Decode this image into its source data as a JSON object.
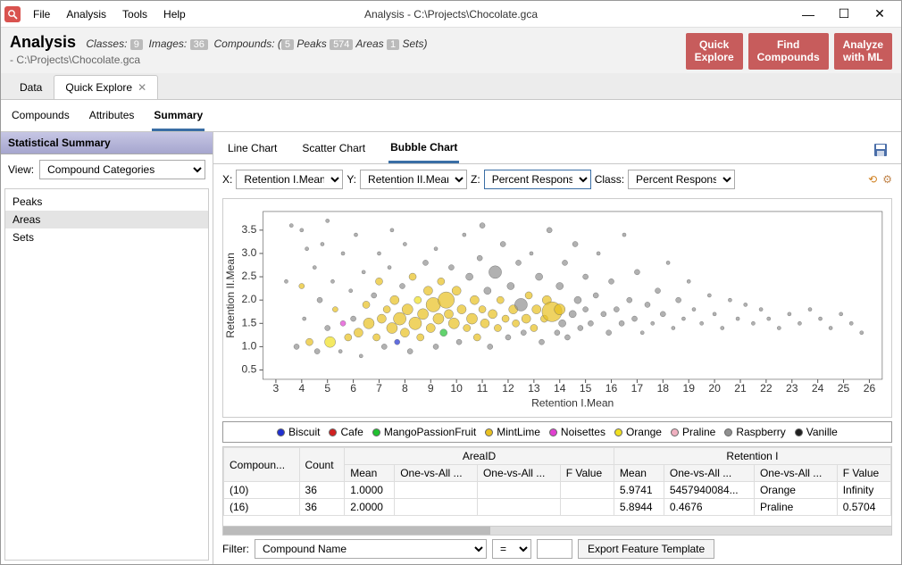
{
  "window": {
    "title": "Analysis - C:\\Projects\\Chocolate.gca"
  },
  "menu": [
    "File",
    "Analysis",
    "Tools",
    "Help"
  ],
  "header": {
    "title": "Analysis",
    "classes_label": "Classes:",
    "classes": "9",
    "images_label": "Images:",
    "images": "36",
    "compounds_label": "Compounds:",
    "peaks": "5",
    "peaks_label": "Peaks",
    "areas": "574",
    "areas_label": "Areas",
    "sets": "1",
    "sets_label": "Sets",
    "path": "- C:\\Projects\\Chocolate.gca",
    "buttons": {
      "quick_explore": "Quick\nExplore",
      "find_compounds": "Find\nCompounds",
      "analyze_ml": "Analyze\nwith ML"
    }
  },
  "main_tabs": [
    {
      "label": "Data",
      "active": false,
      "closable": false
    },
    {
      "label": "Quick Explore",
      "active": true,
      "closable": true
    }
  ],
  "sub_tabs": [
    {
      "label": "Compounds",
      "active": false
    },
    {
      "label": "Attributes",
      "active": false
    },
    {
      "label": "Summary",
      "active": true
    }
  ],
  "left": {
    "header": "Statistical Summary",
    "view_label": "View:",
    "view_value": "Compound Categories",
    "items": [
      {
        "label": "Peaks",
        "sel": false
      },
      {
        "label": "Areas",
        "sel": true
      },
      {
        "label": "Sets",
        "sel": false
      }
    ]
  },
  "chart_tabs": [
    {
      "label": "Line Chart",
      "active": false
    },
    {
      "label": "Scatter Chart",
      "active": false
    },
    {
      "label": "Bubble Chart",
      "active": true
    }
  ],
  "axes": {
    "x_label": "X:",
    "x": "Retention I.Mean",
    "y_label": "Y:",
    "y": "Retention II.Mean",
    "z_label": "Z:",
    "z": "Percent Respons...",
    "class_label": "Class:",
    "class": "Percent Respons..."
  },
  "chart": {
    "xlabel": "Retention I.Mean",
    "ylabel": "Retention II.Mean",
    "xlim": [
      2.5,
      26.5
    ],
    "ylim": [
      0.3,
      3.9
    ],
    "xticks": [
      3,
      4,
      5,
      6,
      7,
      8,
      9,
      10,
      11,
      12,
      13,
      14,
      15,
      16,
      17,
      18,
      19,
      20,
      21,
      22,
      23,
      24,
      25,
      26
    ],
    "yticks": [
      0.5,
      1.0,
      1.5,
      2.0,
      2.5,
      3.0,
      3.5
    ],
    "background": "#ffffff",
    "axis_color": "#555555",
    "tick_color": "#555555",
    "label_fontsize": 11,
    "tick_fontsize": 10,
    "categories": {
      "Biscuit": {
        "color": "#2030d0"
      },
      "Cafe": {
        "color": "#d02020"
      },
      "MangoPassionFruit": {
        "color": "#20c030"
      },
      "MintLime": {
        "color": "#e8c020"
      },
      "Noisettes": {
        "color": "#e040d0"
      },
      "Orange": {
        "color": "#f0e020"
      },
      "Praline": {
        "color": "#f0b0c0"
      },
      "Raspberry": {
        "color": "#909090"
      },
      "Vanille": {
        "color": "#202020"
      }
    },
    "points": [
      {
        "x": 3.4,
        "y": 2.4,
        "r": 2,
        "c": "Raspberry"
      },
      {
        "x": 3.6,
        "y": 3.6,
        "r": 2,
        "c": "Raspberry"
      },
      {
        "x": 3.8,
        "y": 1.0,
        "r": 3,
        "c": "Raspberry"
      },
      {
        "x": 4.0,
        "y": 3.5,
        "r": 2,
        "c": "Raspberry"
      },
      {
        "x": 4.0,
        "y": 2.3,
        "r": 3,
        "c": "MintLime"
      },
      {
        "x": 4.1,
        "y": 1.6,
        "r": 2,
        "c": "Raspberry"
      },
      {
        "x": 4.2,
        "y": 3.1,
        "r": 2,
        "c": "Raspberry"
      },
      {
        "x": 4.3,
        "y": 1.1,
        "r": 4,
        "c": "MintLime"
      },
      {
        "x": 4.5,
        "y": 2.7,
        "r": 2,
        "c": "Raspberry"
      },
      {
        "x": 4.6,
        "y": 0.9,
        "r": 3,
        "c": "Raspberry"
      },
      {
        "x": 4.7,
        "y": 2.0,
        "r": 3,
        "c": "Raspberry"
      },
      {
        "x": 4.8,
        "y": 3.2,
        "r": 2,
        "c": "Raspberry"
      },
      {
        "x": 5.0,
        "y": 3.7,
        "r": 2,
        "c": "Raspberry"
      },
      {
        "x": 5.0,
        "y": 1.4,
        "r": 3,
        "c": "Raspberry"
      },
      {
        "x": 5.1,
        "y": 1.1,
        "r": 6,
        "c": "Orange"
      },
      {
        "x": 5.2,
        "y": 2.4,
        "r": 2,
        "c": "Raspberry"
      },
      {
        "x": 5.3,
        "y": 1.8,
        "r": 3,
        "c": "MintLime"
      },
      {
        "x": 5.5,
        "y": 0.9,
        "r": 2,
        "c": "Raspberry"
      },
      {
        "x": 5.6,
        "y": 1.5,
        "r": 3,
        "c": "Noisettes"
      },
      {
        "x": 5.6,
        "y": 3.0,
        "r": 2,
        "c": "Raspberry"
      },
      {
        "x": 5.8,
        "y": 1.2,
        "r": 4,
        "c": "MintLime"
      },
      {
        "x": 5.9,
        "y": 2.2,
        "r": 2,
        "c": "Raspberry"
      },
      {
        "x": 6.0,
        "y": 1.6,
        "r": 3,
        "c": "Raspberry"
      },
      {
        "x": 6.1,
        "y": 3.4,
        "r": 2,
        "c": "Raspberry"
      },
      {
        "x": 6.2,
        "y": 1.3,
        "r": 5,
        "c": "MintLime"
      },
      {
        "x": 6.3,
        "y": 0.8,
        "r": 2,
        "c": "Raspberry"
      },
      {
        "x": 6.4,
        "y": 2.6,
        "r": 2,
        "c": "Raspberry"
      },
      {
        "x": 6.5,
        "y": 1.9,
        "r": 4,
        "c": "MintLime"
      },
      {
        "x": 6.6,
        "y": 1.5,
        "r": 6,
        "c": "MintLime"
      },
      {
        "x": 6.8,
        "y": 2.1,
        "r": 3,
        "c": "Raspberry"
      },
      {
        "x": 6.9,
        "y": 1.2,
        "r": 4,
        "c": "MintLime"
      },
      {
        "x": 7.0,
        "y": 3.0,
        "r": 2,
        "c": "Raspberry"
      },
      {
        "x": 7.0,
        "y": 2.4,
        "r": 4,
        "c": "MintLime"
      },
      {
        "x": 7.1,
        "y": 1.6,
        "r": 5,
        "c": "MintLime"
      },
      {
        "x": 7.2,
        "y": 1.0,
        "r": 3,
        "c": "Raspberry"
      },
      {
        "x": 7.3,
        "y": 1.8,
        "r": 4,
        "c": "MintLime"
      },
      {
        "x": 7.4,
        "y": 2.7,
        "r": 2,
        "c": "Raspberry"
      },
      {
        "x": 7.5,
        "y": 1.4,
        "r": 6,
        "c": "MintLime"
      },
      {
        "x": 7.5,
        "y": 3.5,
        "r": 2,
        "c": "Raspberry"
      },
      {
        "x": 7.6,
        "y": 2.0,
        "r": 5,
        "c": "MintLime"
      },
      {
        "x": 7.7,
        "y": 1.1,
        "r": 3,
        "c": "Biscuit"
      },
      {
        "x": 7.8,
        "y": 1.6,
        "r": 7,
        "c": "MintLime"
      },
      {
        "x": 7.9,
        "y": 2.3,
        "r": 3,
        "c": "Raspberry"
      },
      {
        "x": 8.0,
        "y": 1.3,
        "r": 5,
        "c": "MintLime"
      },
      {
        "x": 8.0,
        "y": 3.2,
        "r": 2,
        "c": "Raspberry"
      },
      {
        "x": 8.1,
        "y": 1.8,
        "r": 6,
        "c": "MintLime"
      },
      {
        "x": 8.2,
        "y": 0.9,
        "r": 3,
        "c": "Raspberry"
      },
      {
        "x": 8.3,
        "y": 2.5,
        "r": 4,
        "c": "MintLime"
      },
      {
        "x": 8.4,
        "y": 1.5,
        "r": 7,
        "c": "MintLime"
      },
      {
        "x": 8.5,
        "y": 2.0,
        "r": 4,
        "c": "Orange"
      },
      {
        "x": 8.6,
        "y": 1.2,
        "r": 4,
        "c": "MintLime"
      },
      {
        "x": 8.7,
        "y": 1.7,
        "r": 6,
        "c": "MintLime"
      },
      {
        "x": 8.8,
        "y": 2.8,
        "r": 3,
        "c": "Raspberry"
      },
      {
        "x": 8.9,
        "y": 2.2,
        "r": 5,
        "c": "MintLime"
      },
      {
        "x": 9.0,
        "y": 1.4,
        "r": 5,
        "c": "MintLime"
      },
      {
        "x": 9.1,
        "y": 1.9,
        "r": 8,
        "c": "MintLime"
      },
      {
        "x": 9.2,
        "y": 3.1,
        "r": 2,
        "c": "Raspberry"
      },
      {
        "x": 9.2,
        "y": 1.0,
        "r": 3,
        "c": "Raspberry"
      },
      {
        "x": 9.3,
        "y": 1.6,
        "r": 6,
        "c": "MintLime"
      },
      {
        "x": 9.4,
        "y": 2.4,
        "r": 4,
        "c": "MintLime"
      },
      {
        "x": 9.5,
        "y": 1.3,
        "r": 4,
        "c": "MangoPassionFruit"
      },
      {
        "x": 9.6,
        "y": 2.0,
        "r": 9,
        "c": "MintLime"
      },
      {
        "x": 9.7,
        "y": 1.7,
        "r": 5,
        "c": "MintLime"
      },
      {
        "x": 9.8,
        "y": 2.7,
        "r": 3,
        "c": "Raspberry"
      },
      {
        "x": 9.9,
        "y": 1.5,
        "r": 6,
        "c": "MintLime"
      },
      {
        "x": 10.0,
        "y": 2.2,
        "r": 5,
        "c": "MintLime"
      },
      {
        "x": 10.1,
        "y": 1.1,
        "r": 3,
        "c": "Raspberry"
      },
      {
        "x": 10.2,
        "y": 1.8,
        "r": 5,
        "c": "MintLime"
      },
      {
        "x": 10.3,
        "y": 3.4,
        "r": 2,
        "c": "Raspberry"
      },
      {
        "x": 10.4,
        "y": 1.4,
        "r": 4,
        "c": "MintLime"
      },
      {
        "x": 10.5,
        "y": 2.5,
        "r": 4,
        "c": "Raspberry"
      },
      {
        "x": 10.6,
        "y": 1.6,
        "r": 6,
        "c": "MintLime"
      },
      {
        "x": 10.7,
        "y": 2.0,
        "r": 5,
        "c": "MintLime"
      },
      {
        "x": 10.8,
        "y": 1.2,
        "r": 4,
        "c": "MintLime"
      },
      {
        "x": 10.9,
        "y": 2.9,
        "r": 3,
        "c": "Raspberry"
      },
      {
        "x": 11.0,
        "y": 1.8,
        "r": 4,
        "c": "MintLime"
      },
      {
        "x": 11.0,
        "y": 3.6,
        "r": 3,
        "c": "Raspberry"
      },
      {
        "x": 11.1,
        "y": 1.5,
        "r": 5,
        "c": "MintLime"
      },
      {
        "x": 11.2,
        "y": 2.2,
        "r": 4,
        "c": "Raspberry"
      },
      {
        "x": 11.3,
        "y": 1.0,
        "r": 3,
        "c": "Raspberry"
      },
      {
        "x": 11.4,
        "y": 1.7,
        "r": 5,
        "c": "MintLime"
      },
      {
        "x": 11.5,
        "y": 2.6,
        "r": 7,
        "c": "Raspberry"
      },
      {
        "x": 11.6,
        "y": 1.4,
        "r": 4,
        "c": "MintLime"
      },
      {
        "x": 11.7,
        "y": 2.0,
        "r": 4,
        "c": "MintLime"
      },
      {
        "x": 11.8,
        "y": 3.2,
        "r": 3,
        "c": "Raspberry"
      },
      {
        "x": 11.9,
        "y": 1.6,
        "r": 4,
        "c": "MintLime"
      },
      {
        "x": 12.0,
        "y": 1.2,
        "r": 3,
        "c": "Raspberry"
      },
      {
        "x": 12.1,
        "y": 2.3,
        "r": 4,
        "c": "Raspberry"
      },
      {
        "x": 12.2,
        "y": 1.8,
        "r": 5,
        "c": "MintLime"
      },
      {
        "x": 12.3,
        "y": 1.5,
        "r": 4,
        "c": "MintLime"
      },
      {
        "x": 12.4,
        "y": 2.8,
        "r": 3,
        "c": "Raspberry"
      },
      {
        "x": 12.5,
        "y": 1.9,
        "r": 7,
        "c": "Raspberry"
      },
      {
        "x": 12.6,
        "y": 1.3,
        "r": 3,
        "c": "Raspberry"
      },
      {
        "x": 12.7,
        "y": 1.6,
        "r": 5,
        "c": "MintLime"
      },
      {
        "x": 12.8,
        "y": 2.1,
        "r": 4,
        "c": "MintLime"
      },
      {
        "x": 12.9,
        "y": 3.0,
        "r": 2,
        "c": "Raspberry"
      },
      {
        "x": 13.0,
        "y": 1.4,
        "r": 4,
        "c": "MintLime"
      },
      {
        "x": 13.1,
        "y": 1.8,
        "r": 5,
        "c": "MintLime"
      },
      {
        "x": 13.2,
        "y": 2.5,
        "r": 4,
        "c": "Raspberry"
      },
      {
        "x": 13.3,
        "y": 1.1,
        "r": 3,
        "c": "Raspberry"
      },
      {
        "x": 13.4,
        "y": 1.6,
        "r": 4,
        "c": "MintLime"
      },
      {
        "x": 13.5,
        "y": 2.0,
        "r": 5,
        "c": "MintLime"
      },
      {
        "x": 13.6,
        "y": 3.5,
        "r": 3,
        "c": "Raspberry"
      },
      {
        "x": 13.7,
        "y": 1.75,
        "r": 11,
        "c": "MintLime"
      },
      {
        "x": 13.9,
        "y": 1.3,
        "r": 3,
        "c": "Raspberry"
      },
      {
        "x": 14.0,
        "y": 2.3,
        "r": 4,
        "c": "Raspberry"
      },
      {
        "x": 14.0,
        "y": 1.8,
        "r": 6,
        "c": "MintLime"
      },
      {
        "x": 14.1,
        "y": 1.5,
        "r": 4,
        "c": "Raspberry"
      },
      {
        "x": 14.2,
        "y": 2.8,
        "r": 3,
        "c": "Raspberry"
      },
      {
        "x": 14.3,
        "y": 1.2,
        "r": 3,
        "c": "Raspberry"
      },
      {
        "x": 14.5,
        "y": 1.7,
        "r": 4,
        "c": "Raspberry"
      },
      {
        "x": 14.6,
        "y": 3.2,
        "r": 3,
        "c": "Raspberry"
      },
      {
        "x": 14.7,
        "y": 2.0,
        "r": 4,
        "c": "Raspberry"
      },
      {
        "x": 14.8,
        "y": 1.4,
        "r": 3,
        "c": "Raspberry"
      },
      {
        "x": 15.0,
        "y": 1.8,
        "r": 3,
        "c": "Raspberry"
      },
      {
        "x": 15.0,
        "y": 2.5,
        "r": 3,
        "c": "Raspberry"
      },
      {
        "x": 15.2,
        "y": 1.5,
        "r": 3,
        "c": "Raspberry"
      },
      {
        "x": 15.4,
        "y": 2.1,
        "r": 3,
        "c": "Raspberry"
      },
      {
        "x": 15.5,
        "y": 3.0,
        "r": 2,
        "c": "Raspberry"
      },
      {
        "x": 15.7,
        "y": 1.7,
        "r": 3,
        "c": "Raspberry"
      },
      {
        "x": 15.9,
        "y": 1.3,
        "r": 3,
        "c": "Raspberry"
      },
      {
        "x": 16.0,
        "y": 2.4,
        "r": 3,
        "c": "Raspberry"
      },
      {
        "x": 16.2,
        "y": 1.8,
        "r": 3,
        "c": "Raspberry"
      },
      {
        "x": 16.4,
        "y": 1.5,
        "r": 3,
        "c": "Raspberry"
      },
      {
        "x": 16.5,
        "y": 3.4,
        "r": 2,
        "c": "Raspberry"
      },
      {
        "x": 16.7,
        "y": 2.0,
        "r": 3,
        "c": "Raspberry"
      },
      {
        "x": 16.9,
        "y": 1.6,
        "r": 3,
        "c": "Raspberry"
      },
      {
        "x": 17.0,
        "y": 2.6,
        "r": 3,
        "c": "Raspberry"
      },
      {
        "x": 17.2,
        "y": 1.3,
        "r": 2,
        "c": "Raspberry"
      },
      {
        "x": 17.4,
        "y": 1.9,
        "r": 3,
        "c": "Raspberry"
      },
      {
        "x": 17.6,
        "y": 1.5,
        "r": 2,
        "c": "Raspberry"
      },
      {
        "x": 17.8,
        "y": 2.2,
        "r": 3,
        "c": "Raspberry"
      },
      {
        "x": 18.0,
        "y": 1.7,
        "r": 3,
        "c": "Raspberry"
      },
      {
        "x": 18.2,
        "y": 2.8,
        "r": 2,
        "c": "Raspberry"
      },
      {
        "x": 18.4,
        "y": 1.4,
        "r": 2,
        "c": "Raspberry"
      },
      {
        "x": 18.6,
        "y": 2.0,
        "r": 3,
        "c": "Raspberry"
      },
      {
        "x": 18.8,
        "y": 1.6,
        "r": 2,
        "c": "Raspberry"
      },
      {
        "x": 19.0,
        "y": 2.4,
        "r": 2,
        "c": "Raspberry"
      },
      {
        "x": 19.2,
        "y": 1.8,
        "r": 2,
        "c": "Raspberry"
      },
      {
        "x": 19.5,
        "y": 1.5,
        "r": 2,
        "c": "Raspberry"
      },
      {
        "x": 19.8,
        "y": 2.1,
        "r": 2,
        "c": "Raspberry"
      },
      {
        "x": 20.0,
        "y": 1.7,
        "r": 2,
        "c": "Raspberry"
      },
      {
        "x": 20.3,
        "y": 1.4,
        "r": 2,
        "c": "Raspberry"
      },
      {
        "x": 20.6,
        "y": 2.0,
        "r": 2,
        "c": "Raspberry"
      },
      {
        "x": 20.9,
        "y": 1.6,
        "r": 2,
        "c": "Raspberry"
      },
      {
        "x": 21.2,
        "y": 1.9,
        "r": 2,
        "c": "Raspberry"
      },
      {
        "x": 21.5,
        "y": 1.5,
        "r": 2,
        "c": "Raspberry"
      },
      {
        "x": 21.8,
        "y": 1.8,
        "r": 2,
        "c": "Raspberry"
      },
      {
        "x": 22.1,
        "y": 1.6,
        "r": 2,
        "c": "Raspberry"
      },
      {
        "x": 22.5,
        "y": 1.4,
        "r": 2,
        "c": "Raspberry"
      },
      {
        "x": 22.9,
        "y": 1.7,
        "r": 2,
        "c": "Raspberry"
      },
      {
        "x": 23.3,
        "y": 1.5,
        "r": 2,
        "c": "Raspberry"
      },
      {
        "x": 23.7,
        "y": 1.8,
        "r": 2,
        "c": "Raspberry"
      },
      {
        "x": 24.1,
        "y": 1.6,
        "r": 2,
        "c": "Raspberry"
      },
      {
        "x": 24.5,
        "y": 1.4,
        "r": 2,
        "c": "Raspberry"
      },
      {
        "x": 24.9,
        "y": 1.7,
        "r": 2,
        "c": "Raspberry"
      },
      {
        "x": 25.3,
        "y": 1.5,
        "r": 2,
        "c": "Raspberry"
      },
      {
        "x": 25.7,
        "y": 1.3,
        "r": 2,
        "c": "Raspberry"
      }
    ]
  },
  "table": {
    "group_headers": [
      "",
      "",
      "AreaID",
      "Retention I"
    ],
    "col_headers": [
      "Compoun...",
      "Count",
      "Mean",
      "One-vs-All ...",
      "One-vs-All ...",
      "F Value",
      "Mean",
      "One-vs-All ...",
      "One-vs-All ...",
      "F Value"
    ],
    "rows": [
      [
        "(10)",
        "36",
        "1.0000",
        "",
        "",
        "",
        "5.9741",
        "5457940084...",
        "Orange",
        "Infinity"
      ],
      [
        "(16)",
        "36",
        "2.0000",
        "",
        "",
        "",
        "5.8944",
        "0.4676",
        "Praline",
        "0.5704"
      ]
    ]
  },
  "filter": {
    "label": "Filter:",
    "field": "Compound Name",
    "op": "=",
    "value": "",
    "export_label": "Export Feature Template"
  }
}
